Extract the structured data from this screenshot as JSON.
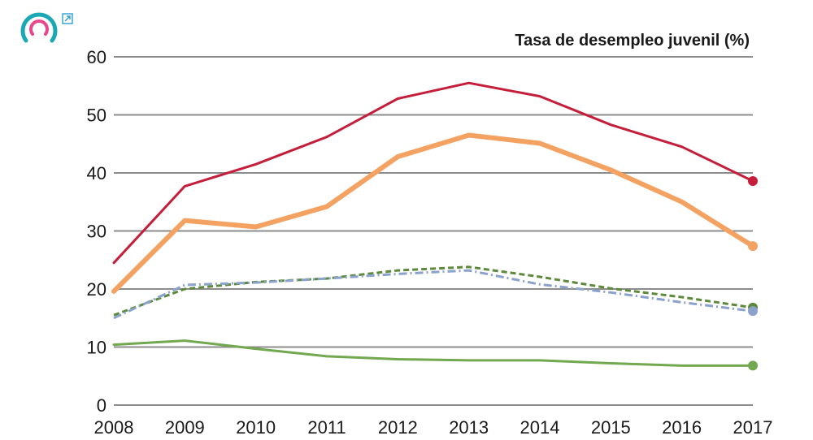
{
  "colors": {
    "logo_teal": "#1aa9b4",
    "logo_pink": "#e8478b",
    "link_icon": "#2a9fd6"
  },
  "icons": {
    "logo": "circular-arrows-logo-icon",
    "external": "external-link-icon"
  },
  "chart_data": {
    "type": "line",
    "title": "Tasa de desempleo juvenil (%)",
    "xlabel": "",
    "ylabel": "",
    "x": [
      "2008",
      "2009",
      "2010",
      "2011",
      "2012",
      "2013",
      "2014",
      "2015",
      "2016",
      "2017"
    ],
    "ylim": [
      0,
      60
    ],
    "yticks": [
      0,
      10,
      20,
      30,
      40,
      50,
      60
    ],
    "grid": true,
    "legend": "none",
    "series": [
      {
        "values": [
          24.5,
          37.7,
          41.5,
          46.2,
          52.8,
          55.5,
          53.2,
          48.3,
          44.5,
          38.6
        ],
        "color": "#c41e3a",
        "style": "solid",
        "weight": "medium",
        "end_marker": true
      },
      {
        "values": [
          19.6,
          31.8,
          30.7,
          34.2,
          42.8,
          46.5,
          45.1,
          40.5,
          35.0,
          27.4
        ],
        "color": "#f4a261",
        "style": "solid",
        "weight": "thick",
        "end_marker": true
      },
      {
        "values": [
          15.5,
          20.0,
          21.2,
          21.8,
          23.2,
          23.8,
          22.1,
          20.1,
          18.6,
          16.8
        ],
        "color": "#5d8a3a",
        "style": "dashed",
        "weight": "medium",
        "end_marker": true
      },
      {
        "values": [
          15.0,
          20.7,
          21.1,
          21.8,
          22.6,
          23.2,
          20.8,
          19.4,
          17.7,
          16.2
        ],
        "color": "#8aa2cc",
        "style": "dashdot",
        "weight": "medium",
        "end_marker": true
      },
      {
        "values": [
          10.4,
          11.1,
          9.7,
          8.4,
          7.9,
          7.7,
          7.7,
          7.2,
          6.8,
          6.8
        ],
        "color": "#72a84f",
        "style": "solid",
        "weight": "medium",
        "end_marker": true
      }
    ]
  }
}
